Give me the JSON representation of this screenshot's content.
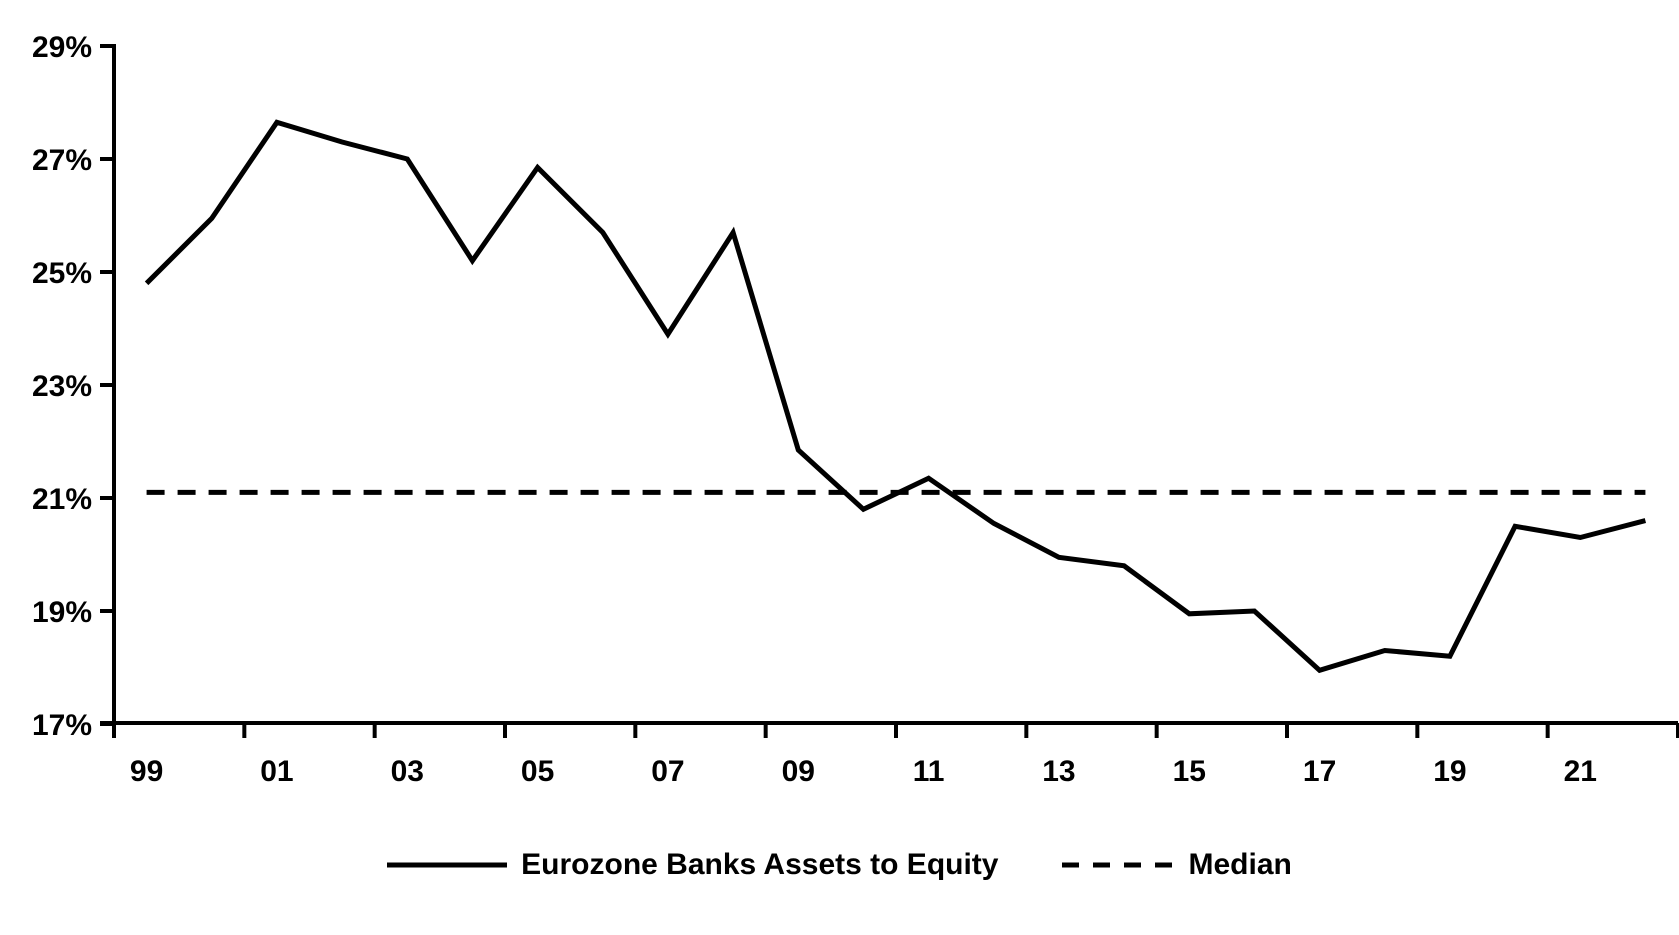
{
  "chart_data": {
    "type": "line",
    "title": "",
    "xlabel": "",
    "ylabel": "",
    "grid": false,
    "legend_position": "bottom",
    "colors": {
      "line": "#000000",
      "background": "#ffffff"
    },
    "x": [
      1999,
      2000,
      2001,
      2002,
      2003,
      2004,
      2005,
      2006,
      2007,
      2008,
      2009,
      2010,
      2011,
      2012,
      2013,
      2014,
      2015,
      2016,
      2017,
      2018,
      2019,
      2020,
      2021,
      2022
    ],
    "series": [
      {
        "name": "Eurozone Banks Assets to Equity",
        "style": "solid",
        "values": [
          24.8,
          25.95,
          27.65,
          27.3,
          27.0,
          25.2,
          26.85,
          25.7,
          23.9,
          25.7,
          21.85,
          20.8,
          21.35,
          20.55,
          19.95,
          19.8,
          18.95,
          19.0,
          17.95,
          18.3,
          18.2,
          20.5,
          20.3,
          20.6
        ]
      },
      {
        "name": "Median",
        "style": "dashed",
        "constant_value": 21.1
      }
    ],
    "y_axis": {
      "min": 17,
      "max": 29,
      "step": 2,
      "tick_labels": [
        "17%",
        "19%",
        "21%",
        "23%",
        "25%",
        "27%",
        "29%"
      ]
    },
    "x_axis": {
      "tick_label_years": [
        1999,
        2001,
        2003,
        2005,
        2007,
        2009,
        2011,
        2013,
        2015,
        2017,
        2019,
        2021
      ],
      "tick_labels": [
        "99",
        "01",
        "03",
        "05",
        "07",
        "09",
        "11",
        "13",
        "15",
        "17",
        "19",
        "21"
      ]
    },
    "legend": [
      {
        "label": "Eurozone Banks Assets to Equity",
        "style": "solid"
      },
      {
        "label": "Median",
        "style": "dashed"
      }
    ]
  }
}
